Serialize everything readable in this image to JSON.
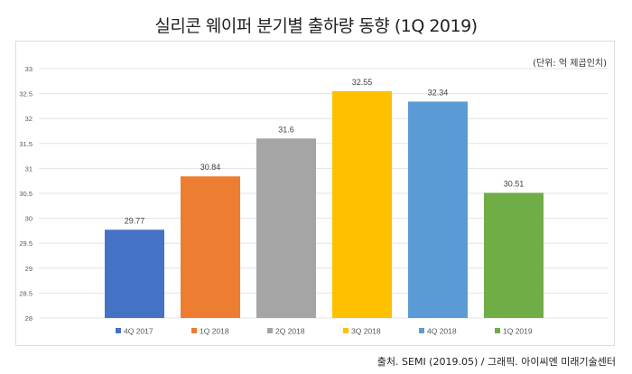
{
  "title": "실리콘 웨이퍼 분기별 출하량 동향 (1Q 2019)",
  "unit_label": "(단위: 억 제곱인치)",
  "source": "출처. SEMI (2019.05) / 그래픽. 아이씨엔 미래기술센터",
  "chart_data": {
    "type": "bar",
    "title": "실리콘 웨이퍼 분기별 출하량 동향 (1Q 2019)",
    "xlabel": "",
    "ylabel": "(단위: 억 제곱인치)",
    "ylim": [
      28,
      33
    ],
    "yticks": [
      "28",
      "28.5",
      "29",
      "29.5",
      "30",
      "30.5",
      "31",
      "31.5",
      "32",
      "32.5",
      "33"
    ],
    "grid": true,
    "legend": "bottom",
    "categories": [
      "4Q 2017",
      "1Q 2018",
      "2Q 2018",
      "3Q 2018",
      "4Q 2018",
      "1Q 2019"
    ],
    "values": [
      29.77,
      30.84,
      31.6,
      32.55,
      32.34,
      30.51
    ],
    "labels": [
      "29.77",
      "30.84",
      "31.6",
      "32.55",
      "32.34",
      "30.51"
    ],
    "colors": [
      "#4472c4",
      "#ed7d31",
      "#a5a5a5",
      "#ffc000",
      "#5b9bd5",
      "#70ad47"
    ]
  }
}
